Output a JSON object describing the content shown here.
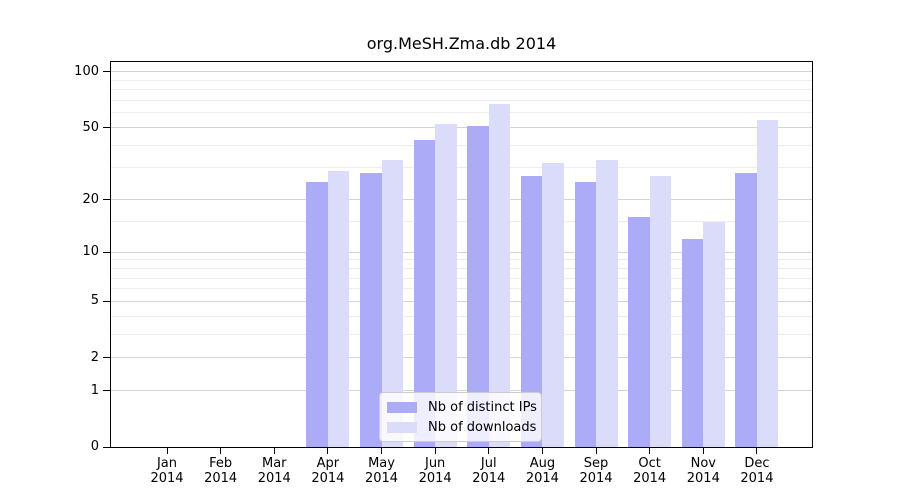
{
  "title": "org.MeSH.Zma.db 2014",
  "chart_data": {
    "type": "bar",
    "title": "org.MeSH.Zma.db 2014",
    "categories": [
      "Jan",
      "Feb",
      "Mar",
      "Apr",
      "May",
      "Jun",
      "Jul",
      "Aug",
      "Sep",
      "Oct",
      "Nov",
      "Dec"
    ],
    "year": "2014",
    "series": [
      {
        "name": "Nb of distinct IPs",
        "color": "#ababf8",
        "values": [
          0,
          0,
          0,
          25,
          28,
          43,
          51,
          27,
          25,
          16,
          12,
          28
        ]
      },
      {
        "name": "Nb of downloads",
        "color": "#dbdbfa",
        "values": [
          0,
          0,
          0,
          29,
          33,
          52,
          67,
          32,
          33,
          27,
          15,
          55
        ]
      }
    ],
    "xlabel": "",
    "ylabel": "",
    "scale": "log1p",
    "ylim": [
      0,
      115
    ],
    "yticks": [
      0,
      1,
      2,
      5,
      10,
      20,
      50,
      100
    ],
    "grid_minor_values": [
      3,
      4,
      6,
      7,
      8,
      9,
      15,
      30,
      40,
      60,
      70,
      80,
      90
    ],
    "grid": "on",
    "legend_position": "lower center",
    "colors": {
      "grid_major": "#d4d4d4",
      "grid_minor": "#ededed",
      "axis": "#000000",
      "legend_border": "#cccccc"
    }
  }
}
